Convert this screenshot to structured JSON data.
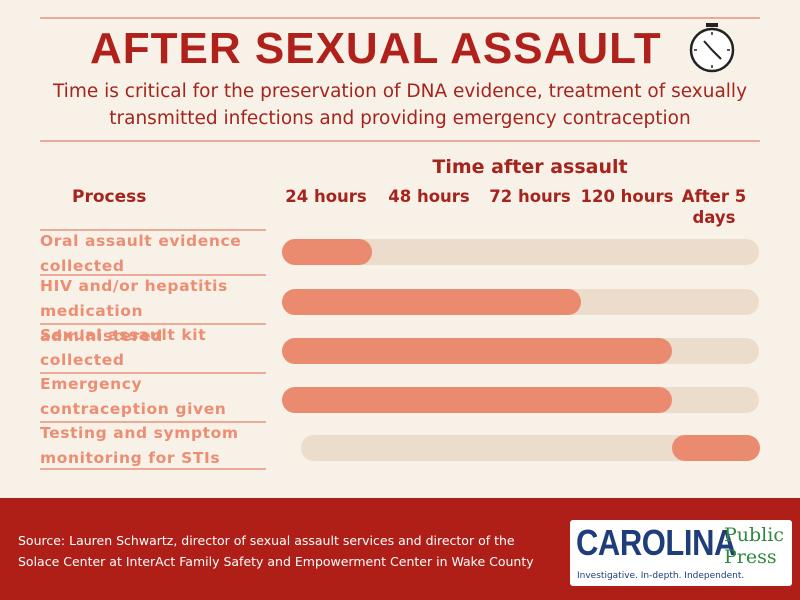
{
  "header": {
    "title": "AFTER SEXUAL ASSAULT",
    "subtitle_line1": "Time is critical for the preservation of DNA evidence, treatment of sexually",
    "subtitle_line2": "transmitted infections and providing emergency contraception",
    "icon": "clock-icon"
  },
  "chart_data": {
    "type": "bar",
    "orientation": "horizontal-timeline",
    "xlabel": "Time after assault",
    "row_header": "Process",
    "ticks": [
      "24 hours",
      "48 hours",
      "72 hours",
      "120 hours",
      "After 5 days"
    ],
    "rows": [
      {
        "label": "Oral assault evidence collected",
        "start": 0,
        "end": 24
      },
      {
        "label": "HIV and/or hepatitis medication administered",
        "start": 0,
        "end": 72
      },
      {
        "label": "Sexual assault kit collected",
        "start": 0,
        "end": 120
      },
      {
        "label": "Emergency contraception given",
        "start": 0,
        "end": 120
      },
      {
        "label": "Testing and symptom monitoring for STIs",
        "start": 120,
        "end": "after 5 days"
      }
    ],
    "colors": {
      "fill": "#ea8b6f",
      "track": "#ecdccb",
      "text": "#a6241e"
    }
  },
  "footer": {
    "source_line1": "Source: Lauren Schwartz, director of sexual assault services and director of the",
    "source_line2": "Solace Center at InterAct Family Safety and Empowerment Center in Wake County",
    "logo_main": "CAROLINA",
    "logo_public": "Public",
    "logo_press": "Press",
    "logo_tagline": "Investigative. In-depth. Independent."
  }
}
